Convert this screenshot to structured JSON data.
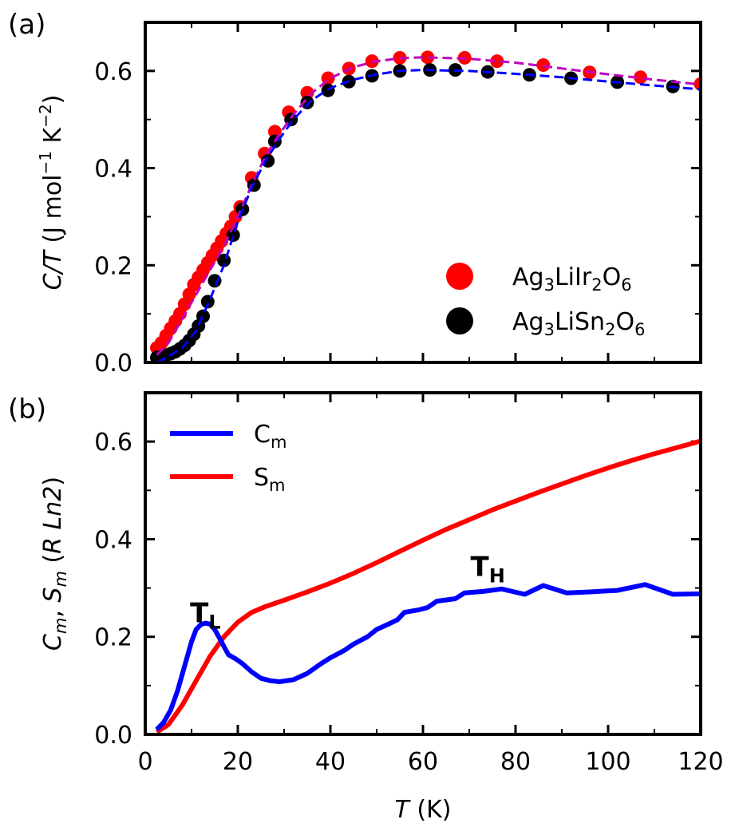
{
  "panel_a": {
    "label": "(a)",
    "legend": [
      {
        "series": "Ag3LiIr2O6",
        "base": "Ag",
        "s1": "3",
        "mid": "LiIr",
        "s2": "2",
        "end": "O",
        "s3": "6"
      },
      {
        "series": "Ag3LiSn2O6",
        "base": "Ag",
        "s1": "3",
        "mid": "LiSn",
        "s2": "2",
        "end": "O",
        "s3": "6"
      }
    ]
  },
  "panel_b": {
    "label": "(b)",
    "legend": [
      {
        "base": "C",
        "sub": "m"
      },
      {
        "base": "S",
        "sub": "m"
      }
    ],
    "annotations": [
      {
        "base": "T",
        "sub": "L",
        "x": 13,
        "y": 0.23
      },
      {
        "base": "T",
        "sub": "H",
        "x": 74,
        "y": 0.325
      }
    ]
  },
  "axes": {
    "xlabel_italic": "T",
    "xlabel_rest": " (K)",
    "ylabel_a": {
      "italic": "C/T",
      "rest1": " (J mol",
      "sup1": "−1",
      "rest2": " K",
      "sup2": "−2",
      "rest3": ")"
    },
    "ylabel_b": {
      "i1": "C",
      "s1": "m",
      "comma": ",  ",
      "i2": "S",
      "s2": "m",
      "open": " (",
      "i3": "R Ln2",
      "close": ")"
    }
  },
  "colors": {
    "ir": "#ff0000",
    "sn": "#000000",
    "ir_fit": "#c000c0",
    "sn_fit": "#0000ff",
    "cm": "#0000ff",
    "sm": "#ff0000"
  },
  "chart_data": [
    {
      "type": "scatter",
      "title": "",
      "xlim": [
        0,
        120
      ],
      "ylim": [
        0,
        0.7
      ],
      "xticks": [
        0,
        20,
        40,
        60,
        80,
        100,
        120
      ],
      "yticks": [
        0.0,
        0.2,
        0.4,
        0.6
      ],
      "series": [
        {
          "name": "Ag3LiIr2O6",
          "x": [
            2.5,
            3.5,
            4.5,
            5.5,
            6.5,
            7.5,
            8.5,
            9.5,
            10.5,
            11.5,
            12.5,
            13.5,
            14.5,
            15.5,
            16.5,
            17.5,
            18.5,
            19.5,
            20.5,
            23,
            25.8,
            28,
            31,
            35,
            39.5,
            44,
            49,
            55,
            61,
            69,
            76,
            86,
            96,
            107,
            120
          ],
          "y": [
            0.03,
            0.04,
            0.055,
            0.07,
            0.085,
            0.1,
            0.12,
            0.14,
            0.16,
            0.175,
            0.19,
            0.205,
            0.22,
            0.235,
            0.25,
            0.265,
            0.28,
            0.3,
            0.32,
            0.38,
            0.43,
            0.475,
            0.515,
            0.555,
            0.585,
            0.605,
            0.62,
            0.627,
            0.628,
            0.627,
            0.62,
            0.612,
            0.597,
            0.587,
            0.573
          ]
        },
        {
          "name": "Ag3LiSn2O6",
          "x": [
            2.5,
            3.5,
            4.5,
            5.5,
            6.5,
            7.5,
            8.5,
            9.5,
            10.5,
            11.5,
            12.5,
            13.5,
            15,
            17,
            19,
            21,
            23.5,
            26.5,
            28,
            31.5,
            35,
            39.5,
            44,
            49,
            55,
            61.5,
            67,
            74,
            83,
            92,
            102,
            114
          ],
          "y": [
            0.01,
            0.012,
            0.015,
            0.018,
            0.022,
            0.028,
            0.035,
            0.045,
            0.058,
            0.075,
            0.095,
            0.125,
            0.168,
            0.21,
            0.262,
            0.315,
            0.365,
            0.415,
            0.455,
            0.5,
            0.535,
            0.56,
            0.578,
            0.59,
            0.6,
            0.602,
            0.602,
            0.598,
            0.592,
            0.585,
            0.577,
            0.568
          ]
        },
        {
          "name": "Ag3LiIr2O6 fit",
          "style": "dashed",
          "x": [
            2.5,
            5,
            8,
            11,
            14,
            17,
            20,
            23,
            26,
            29,
            32,
            36,
            40,
            45,
            50,
            55,
            60,
            70,
            80,
            90,
            100,
            110,
            120
          ],
          "y": [
            0.015,
            0.04,
            0.09,
            0.14,
            0.19,
            0.24,
            0.3,
            0.365,
            0.425,
            0.47,
            0.51,
            0.555,
            0.585,
            0.608,
            0.62,
            0.626,
            0.628,
            0.625,
            0.617,
            0.605,
            0.593,
            0.582,
            0.572
          ]
        },
        {
          "name": "Ag3LiSn2O6 fit",
          "style": "dashed",
          "x": [
            2.5,
            5,
            8,
            11,
            14,
            17,
            20,
            23,
            26,
            29,
            32,
            36,
            40,
            45,
            50,
            55,
            60,
            70,
            80,
            90,
            100,
            110,
            120
          ],
          "y": [
            0.0,
            0.012,
            0.03,
            0.065,
            0.13,
            0.2,
            0.29,
            0.36,
            0.415,
            0.46,
            0.5,
            0.54,
            0.565,
            0.582,
            0.593,
            0.6,
            0.602,
            0.6,
            0.594,
            0.587,
            0.578,
            0.57,
            0.562
          ]
        }
      ]
    },
    {
      "type": "line",
      "title": "",
      "xlim": [
        0,
        120
      ],
      "ylim": [
        0,
        0.7
      ],
      "xticks": [
        0,
        20,
        40,
        60,
        80,
        100,
        120
      ],
      "yticks": [
        0.0,
        0.2,
        0.4,
        0.6
      ],
      "series": [
        {
          "name": "Cm",
          "x": [
            2.5,
            4,
            5.5,
            7,
            8.5,
            10,
            11,
            12,
            13,
            14,
            15,
            16,
            17,
            18,
            19.5,
            21,
            23,
            25,
            27,
            29,
            32,
            35,
            38,
            40,
            43,
            45,
            48,
            50,
            53,
            54.5,
            56,
            59,
            61,
            63,
            67,
            69,
            73,
            77,
            82,
            86,
            91,
            96,
            102,
            108,
            114,
            120
          ],
          "y": [
            0.01,
            0.025,
            0.05,
            0.09,
            0.14,
            0.19,
            0.215,
            0.225,
            0.228,
            0.226,
            0.215,
            0.198,
            0.18,
            0.163,
            0.155,
            0.145,
            0.128,
            0.115,
            0.11,
            0.108,
            0.112,
            0.125,
            0.145,
            0.157,
            0.172,
            0.185,
            0.2,
            0.215,
            0.228,
            0.235,
            0.25,
            0.255,
            0.26,
            0.273,
            0.278,
            0.29,
            0.293,
            0.298,
            0.287,
            0.305,
            0.29,
            0.292,
            0.295,
            0.307,
            0.287,
            0.288
          ]
        },
        {
          "name": "Sm",
          "x": [
            2.5,
            5,
            8,
            11,
            14,
            17,
            20,
            23,
            26,
            30,
            35,
            40,
            45,
            50,
            55,
            60,
            65,
            70,
            75,
            80,
            85,
            90,
            95,
            100,
            105,
            110,
            115,
            120
          ],
          "y": [
            0.005,
            0.02,
            0.06,
            0.11,
            0.16,
            0.2,
            0.23,
            0.25,
            0.262,
            0.275,
            0.292,
            0.31,
            0.33,
            0.352,
            0.375,
            0.398,
            0.42,
            0.44,
            0.46,
            0.478,
            0.496,
            0.513,
            0.53,
            0.546,
            0.561,
            0.575,
            0.588,
            0.601
          ]
        }
      ]
    }
  ]
}
